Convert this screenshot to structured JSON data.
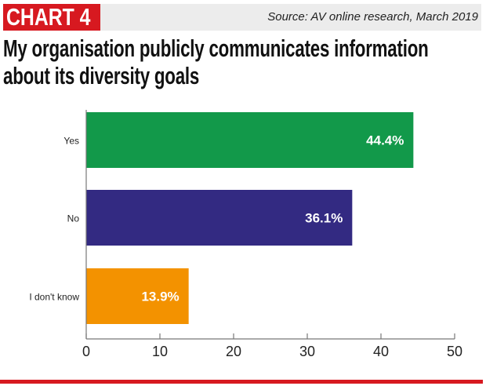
{
  "header": {
    "badge": "CHART 4",
    "source": "Source: AV online research, March 2019",
    "badge_color": "#d71920"
  },
  "chart_data": {
    "type": "bar",
    "orientation": "horizontal",
    "title": "My organisation publicly communicates information about its diversity goals",
    "categories": [
      "Yes",
      "No",
      "I don't know"
    ],
    "values": [
      44.4,
      36.1,
      13.9
    ],
    "data_labels": [
      "44.4%",
      "36.1%",
      "13.9%"
    ],
    "colors": [
      "#12994a",
      "#332a82",
      "#f39200"
    ],
    "xlim": [
      0,
      50
    ],
    "xticks": [
      0,
      10,
      20,
      30,
      40,
      50
    ],
    "xlabel": "",
    "ylabel": "",
    "grid": false
  }
}
